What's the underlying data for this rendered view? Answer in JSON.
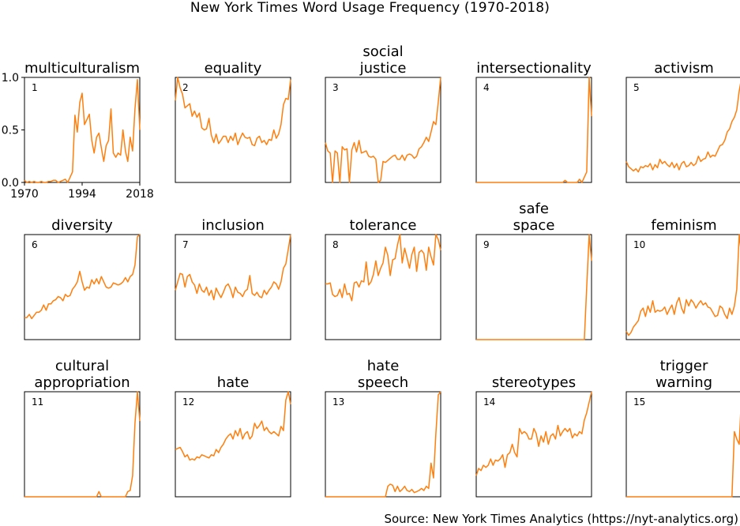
{
  "figure": {
    "title": "New York Times Word Usage Frequency (1970-2018)",
    "source": "Source: New York Times Analytics (https://nyt-analytics.org)"
  },
  "chart_data": {
    "type": "line",
    "layout": "small-multiples 3x5",
    "line_color": "#ff7f0e",
    "x": [
      1970,
      1971,
      1972,
      1973,
      1974,
      1975,
      1976,
      1977,
      1978,
      1979,
      1980,
      1981,
      1982,
      1983,
      1984,
      1985,
      1986,
      1987,
      1988,
      1989,
      1990,
      1991,
      1992,
      1993,
      1994,
      1995,
      1996,
      1997,
      1998,
      1999,
      2000,
      2001,
      2002,
      2003,
      2004,
      2005,
      2006,
      2007,
      2008,
      2009,
      2010,
      2011,
      2012,
      2013,
      2014,
      2015,
      2016,
      2017,
      2018
    ],
    "xlim": [
      1970,
      2018
    ],
    "ylim": [
      0,
      1
    ],
    "xticks": [
      "1970",
      "1994",
      "2018"
    ],
    "yticks": [
      "0.0",
      "0.5",
      "1.0"
    ],
    "axes_shown_on_panel": 1,
    "series": [
      {
        "index": "1",
        "name": "multiculturalism",
        "values": [
          0.02,
          0.0,
          0.01,
          0.0,
          0.01,
          0.0,
          0.0,
          0.01,
          0.0,
          0.0,
          0.01,
          0.01,
          0.02,
          0.02,
          0.0,
          0.01,
          0.02,
          0.03,
          0.0,
          0.05,
          0.1,
          0.64,
          0.48,
          0.76,
          0.85,
          0.55,
          0.6,
          0.65,
          0.4,
          0.28,
          0.43,
          0.47,
          0.33,
          0.2,
          0.35,
          0.4,
          0.7,
          0.28,
          0.24,
          0.28,
          0.26,
          0.5,
          0.3,
          0.2,
          0.43,
          0.3,
          0.7,
          0.98,
          0.5
        ]
      },
      {
        "index": "2",
        "name": "equality",
        "values": [
          0.78,
          1.0,
          0.9,
          0.84,
          0.71,
          0.73,
          0.75,
          0.63,
          0.68,
          0.62,
          0.66,
          0.52,
          0.5,
          0.51,
          0.61,
          0.45,
          0.38,
          0.46,
          0.37,
          0.4,
          0.44,
          0.44,
          0.38,
          0.44,
          0.4,
          0.47,
          0.36,
          0.42,
          0.47,
          0.43,
          0.42,
          0.43,
          0.36,
          0.35,
          0.42,
          0.44,
          0.38,
          0.4,
          0.36,
          0.41,
          0.4,
          0.5,
          0.42,
          0.46,
          0.55,
          0.74,
          0.8,
          0.79,
          0.98
        ]
      },
      {
        "index": "3",
        "name": "social justice",
        "values": [
          0.38,
          0.3,
          0.28,
          0.0,
          0.3,
          0.28,
          0.0,
          0.34,
          0.31,
          0.32,
          0.0,
          0.31,
          0.38,
          0.29,
          0.4,
          0.28,
          0.29,
          0.3,
          0.25,
          0.24,
          0.25,
          0.22,
          0.0,
          0.02,
          0.2,
          0.19,
          0.21,
          0.23,
          0.25,
          0.26,
          0.22,
          0.22,
          0.26,
          0.21,
          0.26,
          0.27,
          0.26,
          0.23,
          0.25,
          0.32,
          0.34,
          0.38,
          0.43,
          0.39,
          0.48,
          0.58,
          0.55,
          0.77,
          1.0
        ]
      },
      {
        "index": "4",
        "name": "intersectionality",
        "values": [
          0.0,
          0.0,
          0.0,
          0.0,
          0.0,
          0.0,
          0.0,
          0.0,
          0.0,
          0.0,
          0.0,
          0.0,
          0.0,
          0.0,
          0.0,
          0.0,
          0.0,
          0.0,
          0.0,
          0.0,
          0.0,
          0.0,
          0.0,
          0.0,
          0.0,
          0.0,
          0.0,
          0.0,
          0.0,
          0.0,
          0.0,
          0.0,
          0.0,
          0.0,
          0.0,
          0.0,
          0.0,
          0.02,
          0.0,
          0.0,
          0.0,
          0.0,
          0.0,
          0.03,
          0.0,
          0.05,
          0.1,
          1.0,
          0.63
        ]
      },
      {
        "index": "5",
        "name": "activism",
        "values": [
          0.2,
          0.15,
          0.13,
          0.11,
          0.13,
          0.1,
          0.15,
          0.14,
          0.16,
          0.15,
          0.18,
          0.12,
          0.17,
          0.14,
          0.22,
          0.18,
          0.2,
          0.17,
          0.15,
          0.19,
          0.14,
          0.18,
          0.12,
          0.18,
          0.2,
          0.15,
          0.16,
          0.19,
          0.16,
          0.18,
          0.25,
          0.2,
          0.22,
          0.23,
          0.29,
          0.24,
          0.26,
          0.25,
          0.3,
          0.35,
          0.36,
          0.4,
          0.48,
          0.51,
          0.58,
          0.62,
          0.69,
          0.87,
          1.0
        ]
      },
      {
        "index": "6",
        "name": "diversity",
        "values": [
          0.21,
          0.21,
          0.24,
          0.2,
          0.23,
          0.26,
          0.26,
          0.28,
          0.33,
          0.28,
          0.34,
          0.34,
          0.37,
          0.38,
          0.41,
          0.4,
          0.37,
          0.43,
          0.41,
          0.42,
          0.48,
          0.51,
          0.55,
          0.65,
          0.55,
          0.47,
          0.5,
          0.49,
          0.57,
          0.53,
          0.58,
          0.53,
          0.6,
          0.55,
          0.5,
          0.49,
          0.5,
          0.54,
          0.53,
          0.52,
          0.53,
          0.55,
          0.59,
          0.55,
          0.6,
          0.62,
          0.71,
          0.98,
          1.0
        ]
      },
      {
        "index": "7",
        "name": "inclusion",
        "values": [
          0.47,
          0.55,
          0.63,
          0.62,
          0.5,
          0.6,
          0.62,
          0.55,
          0.52,
          0.44,
          0.53,
          0.47,
          0.45,
          0.5,
          0.42,
          0.47,
          0.38,
          0.49,
          0.44,
          0.4,
          0.45,
          0.51,
          0.53,
          0.48,
          0.4,
          0.5,
          0.45,
          0.44,
          0.41,
          0.46,
          0.48,
          0.61,
          0.44,
          0.42,
          0.45,
          0.41,
          0.4,
          0.47,
          0.43,
          0.47,
          0.5,
          0.55,
          0.53,
          0.48,
          0.55,
          0.68,
          0.72,
          0.86,
          1.0
        ]
      },
      {
        "index": "8",
        "name": "tolerance",
        "values": [
          0.53,
          0.53,
          0.54,
          0.43,
          0.41,
          0.42,
          0.48,
          0.4,
          0.53,
          0.43,
          0.44,
          0.37,
          0.54,
          0.55,
          0.5,
          0.56,
          0.55,
          0.74,
          0.52,
          0.55,
          0.62,
          0.75,
          0.61,
          0.68,
          0.73,
          0.88,
          0.8,
          0.61,
          0.76,
          0.77,
          0.9,
          1.0,
          0.73,
          0.87,
          0.78,
          0.68,
          0.81,
          0.88,
          0.65,
          0.83,
          0.85,
          0.82,
          0.66,
          0.88,
          0.79,
          0.71,
          1.0,
          0.95,
          0.85
        ]
      },
      {
        "index": "9",
        "name": "safe space",
        "values": [
          0.0,
          0.0,
          0.0,
          0.0,
          0.0,
          0.0,
          0.0,
          0.0,
          0.0,
          0.0,
          0.0,
          0.0,
          0.0,
          0.0,
          0.0,
          0.0,
          0.0,
          0.0,
          0.0,
          0.0,
          0.0,
          0.0,
          0.0,
          0.0,
          0.0,
          0.0,
          0.0,
          0.0,
          0.0,
          0.0,
          0.0,
          0.0,
          0.0,
          0.0,
          0.0,
          0.0,
          0.0,
          0.0,
          0.0,
          0.0,
          0.0,
          0.0,
          0.0,
          0.0,
          0.0,
          0.0,
          0.5,
          1.0,
          0.75
        ]
      },
      {
        "index": "10",
        "name": "feminism",
        "values": [
          0.08,
          0.04,
          0.07,
          0.12,
          0.15,
          0.18,
          0.27,
          0.3,
          0.22,
          0.32,
          0.26,
          0.37,
          0.26,
          0.28,
          0.27,
          0.28,
          0.31,
          0.24,
          0.29,
          0.33,
          0.24,
          0.35,
          0.4,
          0.3,
          0.25,
          0.38,
          0.32,
          0.38,
          0.35,
          0.3,
          0.34,
          0.37,
          0.33,
          0.35,
          0.31,
          0.3,
          0.26,
          0.22,
          0.23,
          0.32,
          0.3,
          0.24,
          0.2,
          0.3,
          0.24,
          0.32,
          0.48,
          1.0,
          0.8
        ]
      },
      {
        "index": "11",
        "name": "cultural appropriation",
        "values": [
          0.0,
          0.0,
          0.0,
          0.0,
          0.0,
          0.0,
          0.0,
          0.0,
          0.0,
          0.0,
          0.0,
          0.0,
          0.0,
          0.0,
          0.0,
          0.0,
          0.0,
          0.0,
          0.0,
          0.0,
          0.0,
          0.0,
          0.0,
          0.0,
          0.0,
          0.0,
          0.0,
          0.0,
          0.0,
          0.0,
          0.0,
          0.05,
          0.0,
          0.0,
          0.0,
          0.0,
          0.0,
          0.0,
          0.0,
          0.0,
          0.0,
          0.0,
          0.0,
          0.05,
          0.06,
          0.2,
          0.7,
          1.0,
          0.72
        ]
      },
      {
        "index": "12",
        "name": "hate",
        "values": [
          0.45,
          0.46,
          0.47,
          0.43,
          0.38,
          0.4,
          0.35,
          0.36,
          0.35,
          0.38,
          0.37,
          0.4,
          0.39,
          0.38,
          0.37,
          0.4,
          0.39,
          0.45,
          0.42,
          0.47,
          0.5,
          0.55,
          0.58,
          0.6,
          0.55,
          0.63,
          0.58,
          0.65,
          0.55,
          0.6,
          0.62,
          0.55,
          0.58,
          0.7,
          0.65,
          0.68,
          0.72,
          0.63,
          0.66,
          0.62,
          0.6,
          0.62,
          0.6,
          0.58,
          0.67,
          0.63,
          0.92,
          1.0,
          0.88
        ]
      },
      {
        "index": "13",
        "name": "hate speech",
        "values": [
          0.0,
          0.0,
          0.0,
          0.0,
          0.0,
          0.0,
          0.0,
          0.0,
          0.0,
          0.0,
          0.0,
          0.0,
          0.0,
          0.0,
          0.0,
          0.0,
          0.0,
          0.0,
          0.0,
          0.0,
          0.0,
          0.0,
          0.0,
          0.0,
          0.0,
          0.0,
          0.1,
          0.12,
          0.11,
          0.05,
          0.1,
          0.05,
          0.07,
          0.1,
          0.06,
          0.05,
          0.07,
          0.04,
          0.05,
          0.06,
          0.08,
          0.06,
          0.1,
          0.08,
          0.32,
          0.18,
          0.6,
          0.97,
          1.0
        ]
      },
      {
        "index": "14",
        "name": "stereotypes",
        "values": [
          0.2,
          0.27,
          0.25,
          0.3,
          0.28,
          0.3,
          0.36,
          0.3,
          0.35,
          0.34,
          0.36,
          0.4,
          0.28,
          0.4,
          0.42,
          0.5,
          0.42,
          0.38,
          0.65,
          0.6,
          0.62,
          0.6,
          0.55,
          0.55,
          0.65,
          0.6,
          0.48,
          0.58,
          0.52,
          0.62,
          0.5,
          0.58,
          0.6,
          0.55,
          0.68,
          0.58,
          0.62,
          0.65,
          0.62,
          0.65,
          0.56,
          0.6,
          0.58,
          0.62,
          0.6,
          0.73,
          0.8,
          0.9,
          1.0
        ]
      },
      {
        "index": "15",
        "name": "trigger warning",
        "values": [
          0.0,
          0.0,
          0.0,
          0.0,
          0.0,
          0.0,
          0.0,
          0.0,
          0.0,
          0.0,
          0.0,
          0.0,
          0.0,
          0.0,
          0.0,
          0.0,
          0.0,
          0.0,
          0.0,
          0.0,
          0.0,
          0.0,
          0.0,
          0.0,
          0.0,
          0.0,
          0.0,
          0.0,
          0.0,
          0.0,
          0.0,
          0.0,
          0.0,
          0.0,
          0.0,
          0.0,
          0.0,
          0.0,
          0.0,
          0.0,
          0.0,
          0.0,
          0.0,
          0.0,
          0.0,
          0.62,
          0.55,
          0.5,
          1.0
        ]
      }
    ]
  }
}
